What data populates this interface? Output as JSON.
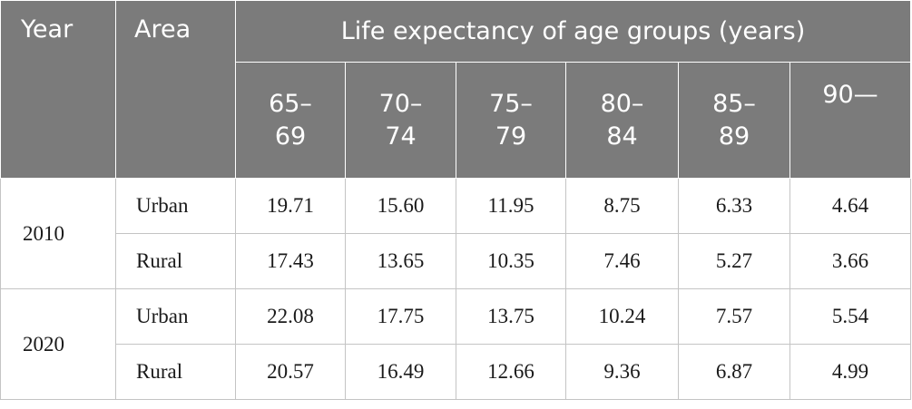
{
  "header": {
    "year": "Year",
    "area": "Area",
    "span": "Life expectancy of age groups (years)",
    "ages": [
      {
        "top": "65–",
        "bottom": "69"
      },
      {
        "top": "70–",
        "bottom": "74"
      },
      {
        "top": "75–",
        "bottom": "79"
      },
      {
        "top": "80–",
        "bottom": "84"
      },
      {
        "top": "85–",
        "bottom": "89"
      },
      {
        "top": "90—",
        "bottom": ""
      }
    ]
  },
  "rows": [
    {
      "year": "2010",
      "area": "Urban",
      "values": [
        "19.71",
        "15.60",
        "11.95",
        "8.75",
        "6.33",
        "4.64"
      ]
    },
    {
      "year": "2010",
      "area": "Rural",
      "values": [
        "17.43",
        "13.65",
        "10.35",
        "7.46",
        "5.27",
        "3.66"
      ]
    },
    {
      "year": "2020",
      "area": "Urban",
      "values": [
        "22.08",
        "17.75",
        "13.75",
        "10.24",
        "7.57",
        "5.54"
      ]
    },
    {
      "year": "2020",
      "area": "Rural",
      "values": [
        "20.57",
        "16.49",
        "12.66",
        "9.36",
        "6.87",
        "4.99"
      ]
    }
  ]
}
